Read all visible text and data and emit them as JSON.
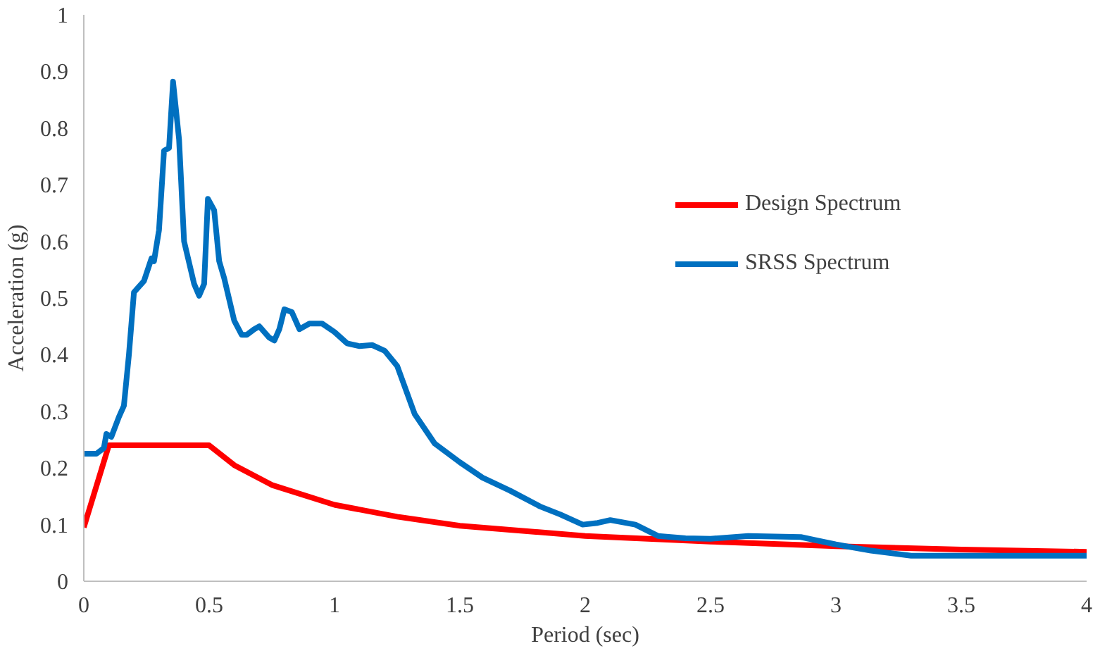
{
  "chart_data": {
    "type": "line",
    "xlabel": "Period (sec)",
    "ylabel": "Acceleration (g)",
    "xlim": [
      0,
      4
    ],
    "ylim": [
      0,
      1
    ],
    "xticks": [
      0,
      0.5,
      1,
      1.5,
      2,
      2.5,
      3,
      3.5,
      4
    ],
    "yticks": [
      0,
      0.1,
      0.2,
      0.3,
      0.4,
      0.5,
      0.6,
      0.7,
      0.8,
      0.9,
      1
    ],
    "grid": false,
    "legend": "right",
    "marker": "none",
    "line_style": "solid",
    "series": [
      {
        "name": "Design Spectrum",
        "color": "#ff0000",
        "x": [
          0,
          0.1,
          0.5,
          0.6,
          0.75,
          1.0,
          1.25,
          1.5,
          2.0,
          2.5,
          3.0,
          3.5,
          4.0
        ],
        "values": [
          0.095,
          0.24,
          0.24,
          0.205,
          0.17,
          0.135,
          0.114,
          0.098,
          0.08,
          0.07,
          0.062,
          0.056,
          0.052
        ]
      },
      {
        "name": "SRSS Spectrum",
        "color": "#0070c0",
        "x": [
          0,
          0.05,
          0.08,
          0.09,
          0.11,
          0.14,
          0.16,
          0.18,
          0.2,
          0.24,
          0.27,
          0.28,
          0.3,
          0.32,
          0.34,
          0.356,
          0.38,
          0.4,
          0.44,
          0.46,
          0.48,
          0.495,
          0.52,
          0.54,
          0.56,
          0.6,
          0.63,
          0.65,
          0.68,
          0.7,
          0.74,
          0.76,
          0.78,
          0.8,
          0.83,
          0.86,
          0.9,
          0.95,
          1.0,
          1.05,
          1.1,
          1.15,
          1.2,
          1.25,
          1.32,
          1.4,
          1.5,
          1.59,
          1.7,
          1.82,
          1.9,
          1.99,
          2.05,
          2.1,
          2.2,
          2.29,
          2.4,
          2.5,
          2.65,
          2.86,
          3.0,
          3.14,
          3.3,
          3.6,
          4.0
        ],
        "values": [
          0.225,
          0.225,
          0.235,
          0.26,
          0.255,
          0.29,
          0.31,
          0.4,
          0.51,
          0.53,
          0.57,
          0.565,
          0.62,
          0.76,
          0.765,
          0.882,
          0.78,
          0.6,
          0.525,
          0.504,
          0.525,
          0.675,
          0.655,
          0.565,
          0.535,
          0.46,
          0.435,
          0.435,
          0.445,
          0.45,
          0.43,
          0.425,
          0.445,
          0.48,
          0.475,
          0.445,
          0.455,
          0.455,
          0.44,
          0.42,
          0.415,
          0.417,
          0.407,
          0.38,
          0.295,
          0.243,
          0.21,
          0.183,
          0.16,
          0.132,
          0.118,
          0.1,
          0.103,
          0.108,
          0.1,
          0.08,
          0.076,
          0.075,
          0.08,
          0.078,
          0.065,
          0.054,
          0.045,
          0.045,
          0.045
        ]
      }
    ]
  }
}
